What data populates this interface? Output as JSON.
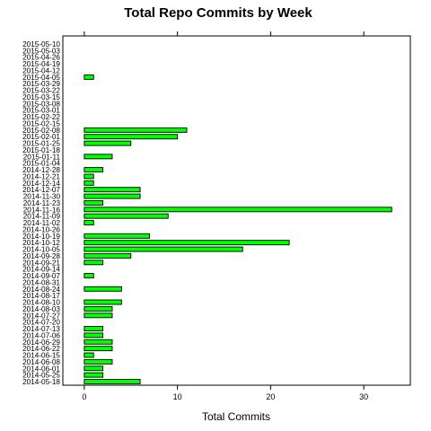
{
  "chart_data": {
    "type": "bar",
    "orientation": "horizontal",
    "title": "Total Repo Commits by Week",
    "xlabel": "Total Commits",
    "ylabel": "",
    "xlim": [
      -2.3,
      35
    ],
    "x_ticks": [
      0,
      10,
      20,
      30
    ],
    "grid": false,
    "bar_color": "#00ff00",
    "bar_edge_color": "#000000",
    "categories": [
      "2014-05-18",
      "2014-05-25",
      "2014-06-01",
      "2014-06-08",
      "2014-06-15",
      "2014-06-22",
      "2014-06-29",
      "2014-07-06",
      "2014-07-13",
      "2014-07-20",
      "2014-07-27",
      "2014-08-03",
      "2014-08-10",
      "2014-08-17",
      "2014-08-24",
      "2014-08-31",
      "2014-09-07",
      "2014-09-14",
      "2014-09-21",
      "2014-09-28",
      "2014-10-05",
      "2014-10-12",
      "2014-10-19",
      "2014-10-26",
      "2014-11-02",
      "2014-11-09",
      "2014-11-16",
      "2014-11-23",
      "2014-11-30",
      "2014-12-07",
      "2014-12-14",
      "2014-12-21",
      "2014-12-28",
      "2015-01-04",
      "2015-01-11",
      "2015-01-18",
      "2015-01-25",
      "2015-02-01",
      "2015-02-08",
      "2015-02-15",
      "2015-02-22",
      "2015-03-01",
      "2015-03-08",
      "2015-03-15",
      "2015-03-22",
      "2015-03-29",
      "2015-04-05",
      "2015-04-12",
      "2015-04-19",
      "2015-04-26",
      "2015-05-03",
      "2015-05-10"
    ],
    "values": [
      6,
      2,
      2,
      3,
      1,
      3,
      3,
      2,
      2,
      0,
      3,
      3,
      4,
      0,
      4,
      0,
      1,
      0,
      2,
      5,
      17,
      22,
      7,
      0,
      1,
      9,
      33,
      2,
      6,
      6,
      1,
      1,
      2,
      0,
      3,
      0,
      5,
      10,
      11,
      0,
      0,
      0,
      0,
      0,
      0,
      0,
      1,
      0,
      0,
      0,
      0,
      0
    ]
  }
}
